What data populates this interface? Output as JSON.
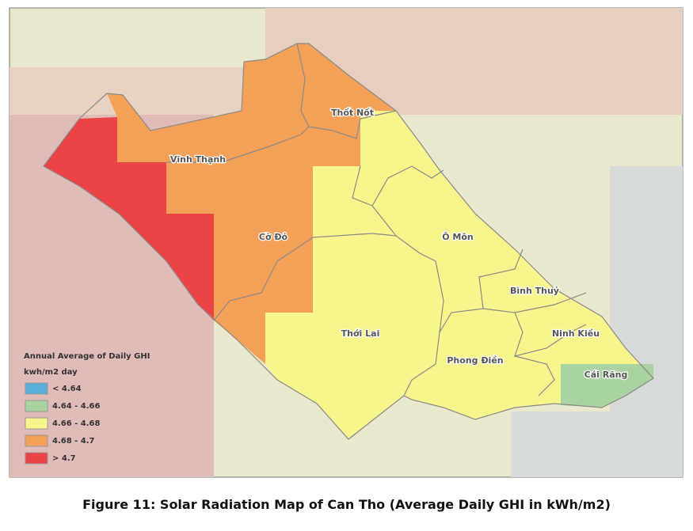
{
  "map": {
    "districts": [
      "Thốt Nốt",
      "Vĩnh Thạnh",
      "Cờ Đỏ",
      "Ô Môn",
      "Bình Thuỷ",
      "Thới Lai",
      "Ninh Kiều",
      "Phong Điền",
      "Cái Răng"
    ],
    "legend": {
      "title": "Annual Average of Daily GHI",
      "unit": "kwh/m2 day",
      "items": [
        {
          "label": "< 4.64",
          "color": "#5aaed8"
        },
        {
          "label": "4.64 - 4.66",
          "color": "#a9d3a0"
        },
        {
          "label": "4.66 - 4.68",
          "color": "#f7f58c"
        },
        {
          "label": "4.68 - 4.7",
          "color": "#f5a057"
        },
        {
          "label": "> 4.7",
          "color": "#ec4446"
        }
      ]
    }
  },
  "caption": "Figure 11: Solar Radiation Map of Can Tho (Average Daily GHI in kWh/m2)"
}
